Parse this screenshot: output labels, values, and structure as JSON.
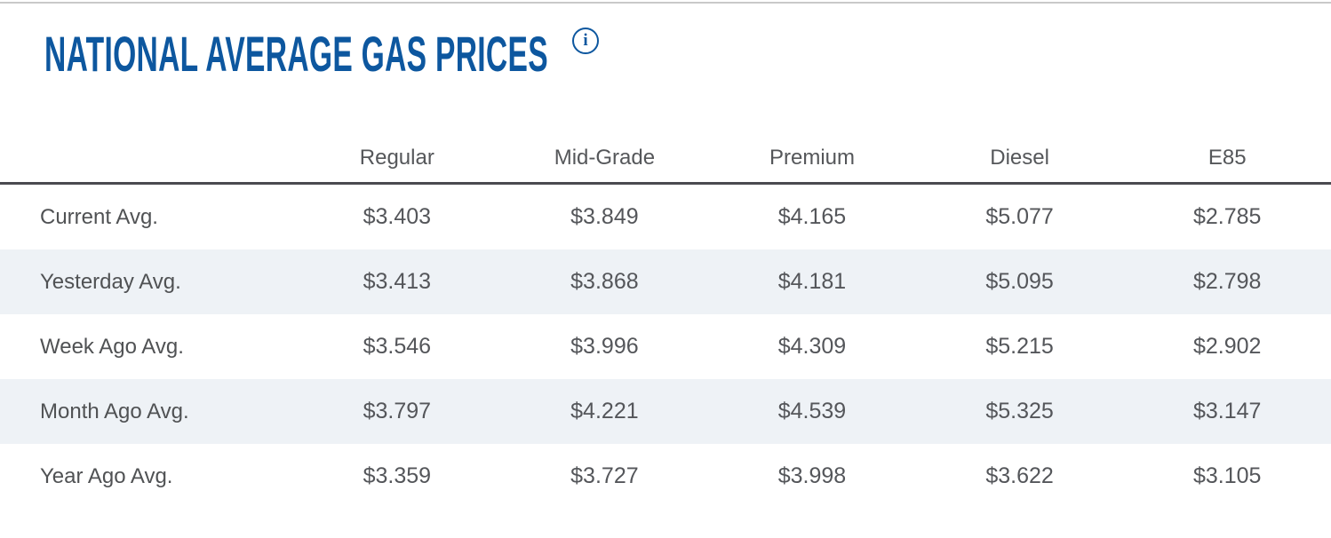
{
  "page": {
    "title": "NATIONAL AVERAGE GAS PRICES",
    "info_icon_glyph": "i"
  },
  "table": {
    "columns": [
      "Regular",
      "Mid-Grade",
      "Premium",
      "Diesel",
      "E85"
    ],
    "rows": [
      {
        "label": "Current Avg.",
        "values": [
          "$3.403",
          "$3.849",
          "$4.165",
          "$5.077",
          "$2.785"
        ]
      },
      {
        "label": "Yesterday Avg.",
        "values": [
          "$3.413",
          "$3.868",
          "$4.181",
          "$5.095",
          "$2.798"
        ]
      },
      {
        "label": "Week Ago Avg.",
        "values": [
          "$3.546",
          "$3.996",
          "$4.309",
          "$5.215",
          "$2.902"
        ]
      },
      {
        "label": "Month Ago Avg.",
        "values": [
          "$3.797",
          "$4.221",
          "$4.539",
          "$5.325",
          "$3.147"
        ]
      },
      {
        "label": "Year Ago Avg.",
        "values": [
          "$3.359",
          "$3.727",
          "$3.998",
          "$3.622",
          "$3.105"
        ]
      }
    ],
    "striped_row_indexes": [
      1,
      3
    ]
  },
  "chart_data": {
    "type": "table",
    "title": "NATIONAL AVERAGE GAS PRICES",
    "categories": [
      "Regular",
      "Mid-Grade",
      "Premium",
      "Diesel",
      "E85"
    ],
    "series": [
      {
        "name": "Current Avg.",
        "values": [
          3.403,
          3.849,
          4.165,
          5.077,
          2.785
        ]
      },
      {
        "name": "Yesterday Avg.",
        "values": [
          3.413,
          3.868,
          4.181,
          5.095,
          2.798
        ]
      },
      {
        "name": "Week Ago Avg.",
        "values": [
          3.546,
          3.996,
          4.309,
          5.215,
          2.902
        ]
      },
      {
        "name": "Month Ago Avg.",
        "values": [
          3.797,
          4.221,
          4.539,
          5.325,
          3.147
        ]
      },
      {
        "name": "Year Ago Avg.",
        "values": [
          3.359,
          3.727,
          3.998,
          3.622,
          3.105
        ]
      }
    ],
    "unit": "USD per gallon"
  },
  "colors": {
    "title_blue": "#0d579f",
    "header_rule_dark": "#4a4a50",
    "top_rule_gray": "#c9c9c9",
    "stripe_bg": "#eef2f6",
    "body_text_gray": "#54565a"
  }
}
